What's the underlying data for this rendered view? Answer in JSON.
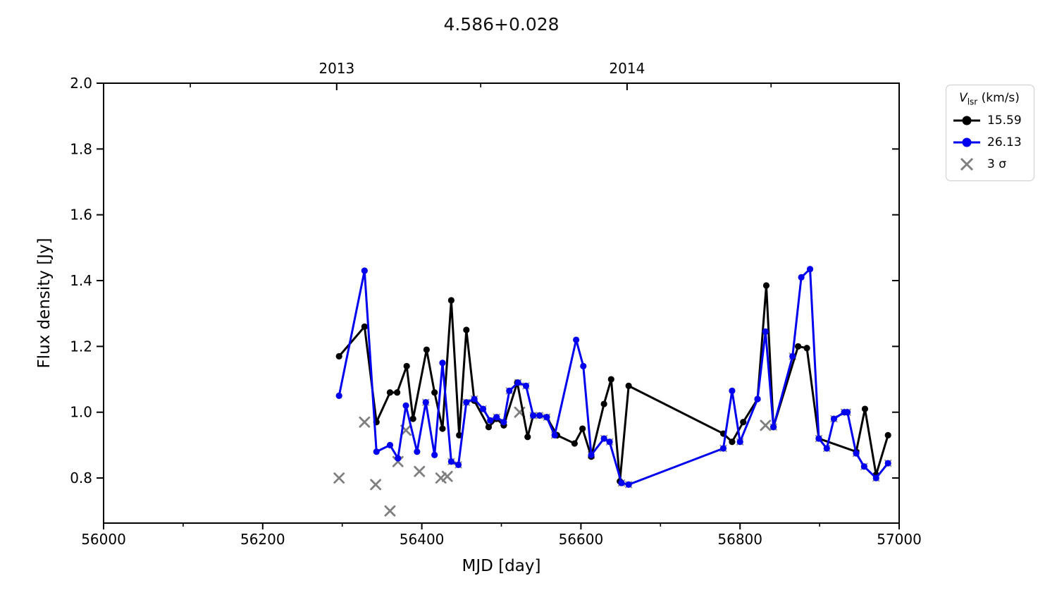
{
  "title": "4.586+0.028",
  "axes": {
    "xlabel": "MJD [day]",
    "ylabel": "Flux density [Jy]",
    "xlim": [
      56000,
      57000
    ],
    "ylim": [
      0.663,
      2.0
    ],
    "xticks": [
      56000,
      56200,
      56400,
      56600,
      56800,
      57000
    ],
    "xminor_step": 100,
    "yticks": [
      2.0,
      1.8,
      1.6,
      1.4,
      1.2,
      1.0,
      0.8
    ],
    "top_ticks": [
      {
        "label": "2013",
        "mjd": 56293
      },
      {
        "label": "2014",
        "mjd": 56658
      }
    ],
    "top_minor": [
      56109,
      56474,
      56839
    ],
    "axis_color": "#000000"
  },
  "legend": {
    "title_v": "V",
    "title_sub": "lsr",
    "title_units": " (km/s)",
    "items": [
      {
        "label": "15.59",
        "color": "#000000",
        "marker": "line-dot"
      },
      {
        "label": "26.13",
        "color": "#0000ee",
        "marker": "line-dot"
      },
      {
        "label": "3 σ",
        "color": "#7f7f7f",
        "marker": "x"
      }
    ]
  },
  "chart_data": {
    "type": "line",
    "title": "4.586+0.028",
    "xlabel": "MJD [day]",
    "ylabel": "Flux density [Jy]",
    "xlim": [
      56000,
      57000
    ],
    "ylim": [
      0.663,
      2.0
    ],
    "legend_position": "upper right, outside axes",
    "grid": false,
    "series": [
      {
        "name": "15.59",
        "color": "#000000",
        "points": [
          [
            56296,
            1.17
          ],
          [
            56328,
            1.26
          ],
          [
            56343,
            0.97
          ],
          [
            56360,
            1.06
          ],
          [
            56369,
            1.06
          ],
          [
            56381,
            1.14
          ],
          [
            56389,
            0.98
          ],
          [
            56406,
            1.19
          ],
          [
            56416,
            1.06
          ],
          [
            56426,
            0.95
          ],
          [
            56437,
            1.34
          ],
          [
            56447,
            0.93
          ],
          [
            56456,
            1.25
          ],
          [
            56466,
            1.035
          ],
          [
            56484,
            0.955
          ],
          [
            56494,
            0.98
          ],
          [
            56503,
            0.96
          ],
          [
            56520,
            1.09
          ],
          [
            56533,
            0.925
          ],
          [
            56540,
            0.99
          ],
          [
            56548,
            0.99
          ],
          [
            56557,
            0.985
          ],
          [
            56570,
            0.93
          ],
          [
            56592,
            0.905
          ],
          [
            56602,
            0.95
          ],
          [
            56613,
            0.865
          ],
          [
            56629,
            1.025
          ],
          [
            56638,
            1.1
          ],
          [
            56649,
            0.79
          ],
          [
            56660,
            1.08
          ],
          [
            56779,
            0.935
          ],
          [
            56790,
            0.91
          ],
          [
            56804,
            0.97
          ],
          [
            56822,
            1.04
          ],
          [
            56833,
            1.385
          ],
          [
            56842,
            0.955
          ],
          [
            56873,
            1.2
          ],
          [
            56884,
            1.195
          ],
          [
            56899,
            0.92
          ],
          [
            56946,
            0.88
          ],
          [
            56957,
            1.01
          ],
          [
            56971,
            0.81
          ],
          [
            56986,
            0.93
          ]
        ]
      },
      {
        "name": "26.13",
        "color": "#0000ee",
        "points": [
          [
            56296,
            1.05
          ],
          [
            56328,
            1.43
          ],
          [
            56343,
            0.88
          ],
          [
            56360,
            0.9
          ],
          [
            56370,
            0.86
          ],
          [
            56380,
            1.02
          ],
          [
            56394,
            0.88
          ],
          [
            56405,
            1.03
          ],
          [
            56416,
            0.87
          ],
          [
            56426,
            1.15
          ],
          [
            56437,
            0.85
          ],
          [
            56446,
            0.84
          ],
          [
            56456,
            1.03
          ],
          [
            56466,
            1.04
          ],
          [
            56477,
            1.01
          ],
          [
            56486,
            0.975
          ],
          [
            56494,
            0.985
          ],
          [
            56503,
            0.97
          ],
          [
            56510,
            1.065
          ],
          [
            56521,
            1.09
          ],
          [
            56531,
            1.08
          ],
          [
            56540,
            0.99
          ],
          [
            56548,
            0.99
          ],
          [
            56557,
            0.985
          ],
          [
            56567,
            0.93
          ],
          [
            56594,
            1.22
          ],
          [
            56603,
            1.14
          ],
          [
            56613,
            0.87
          ],
          [
            56629,
            0.92
          ],
          [
            56636,
            0.91
          ],
          [
            56651,
            0.785
          ],
          [
            56660,
            0.78
          ],
          [
            56779,
            0.89
          ],
          [
            56790,
            1.065
          ],
          [
            56800,
            0.91
          ],
          [
            56822,
            1.04
          ],
          [
            56832,
            1.245
          ],
          [
            56842,
            0.955
          ],
          [
            56866,
            1.17
          ],
          [
            56877,
            1.41
          ],
          [
            56888,
            1.435
          ],
          [
            56899,
            0.92
          ],
          [
            56909,
            0.89
          ],
          [
            56918,
            0.98
          ],
          [
            56931,
            1.0
          ],
          [
            56935,
            1.0
          ],
          [
            56946,
            0.875
          ],
          [
            56956,
            0.835
          ],
          [
            56971,
            0.8
          ],
          [
            56986,
            0.845
          ]
        ]
      }
    ],
    "sigma_markers": {
      "name": "3 σ",
      "color": "#7f7f7f",
      "points": [
        [
          56296,
          0.8
        ],
        [
          56328,
          0.97
        ],
        [
          56342,
          0.78
        ],
        [
          56360,
          0.7
        ],
        [
          56370,
          0.85
        ],
        [
          56380,
          0.945
        ],
        [
          56397,
          0.82
        ],
        [
          56424,
          0.8
        ],
        [
          56432,
          0.805
        ],
        [
          56523,
          1.0
        ],
        [
          56832,
          0.96
        ]
      ],
      "small_points": [
        [
          56405,
          1.03
        ],
        [
          56437,
          0.85
        ],
        [
          56446,
          0.84
        ],
        [
          56456,
          1.03
        ],
        [
          56466,
          1.04
        ],
        [
          56477,
          1.01
        ],
        [
          56486,
          0.975
        ],
        [
          56494,
          0.985
        ],
        [
          56503,
          0.97
        ],
        [
          56510,
          1.065
        ],
        [
          56521,
          1.09
        ],
        [
          56531,
          1.08
        ],
        [
          56540,
          0.99
        ],
        [
          56548,
          0.99
        ],
        [
          56557,
          0.985
        ],
        [
          56567,
          0.93
        ],
        [
          56613,
          0.87
        ],
        [
          56629,
          0.92
        ],
        [
          56636,
          0.91
        ],
        [
          56651,
          0.785
        ],
        [
          56660,
          0.78
        ],
        [
          56779,
          0.89
        ],
        [
          56800,
          0.91
        ],
        [
          56842,
          0.955
        ],
        [
          56866,
          1.17
        ],
        [
          56899,
          0.92
        ],
        [
          56909,
          0.89
        ],
        [
          56918,
          0.98
        ],
        [
          56931,
          1.0
        ],
        [
          56935,
          1.0
        ],
        [
          56946,
          0.875
        ],
        [
          56956,
          0.835
        ],
        [
          56971,
          0.8
        ],
        [
          56986,
          0.845
        ]
      ]
    }
  }
}
